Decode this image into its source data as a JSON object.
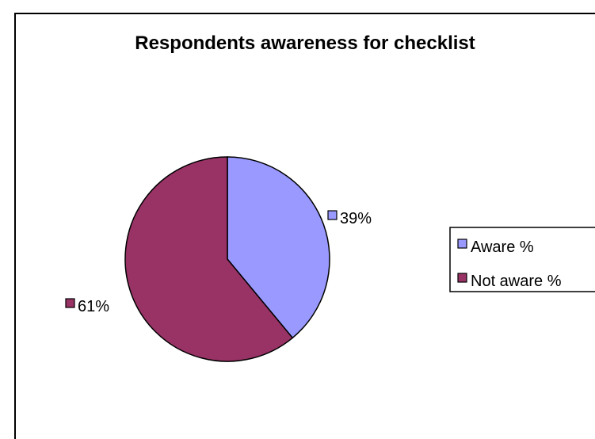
{
  "chart_data": {
    "type": "pie",
    "title": "Respondents awareness for checklist",
    "categories": [
      "Aware %",
      "Not aware %"
    ],
    "values": [
      39,
      61
    ],
    "data_labels": [
      "39%",
      "61%"
    ],
    "colors": [
      "#9999ff",
      "#993366"
    ],
    "start_angle_deg": 0,
    "direction": "clockwise",
    "legend": {
      "placement": "right",
      "entries": [
        "Aware %",
        "Not aware %"
      ]
    }
  }
}
